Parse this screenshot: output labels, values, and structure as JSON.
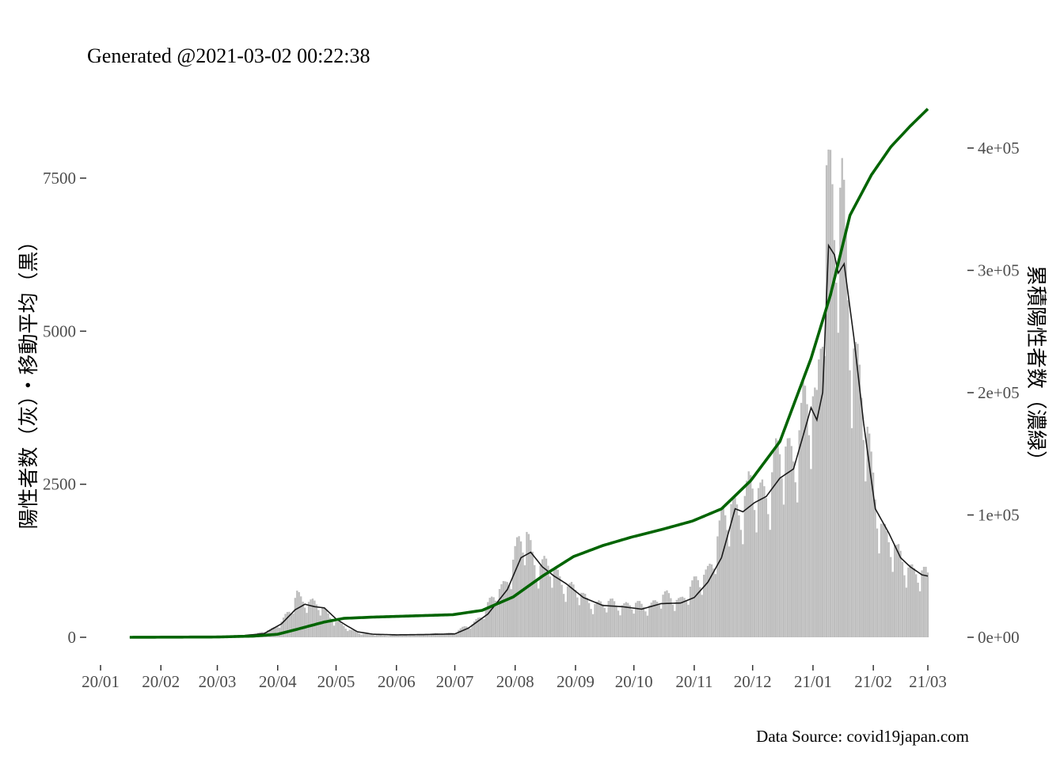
{
  "title": "Generated @2021-03-02 00:22:38",
  "caption": "Data Source: covid19japan.com",
  "chart_data": {
    "type": "bar",
    "description_free": true,
    "x_axis": {
      "type": "date",
      "range": [
        "2020-01-01",
        "2021-03-01"
      ],
      "tick_labels": [
        "20/01",
        "20/02",
        "20/03",
        "20/04",
        "20/05",
        "20/06",
        "20/07",
        "20/08",
        "20/09",
        "20/10",
        "20/11",
        "20/12",
        "21/01",
        "21/02",
        "21/03"
      ],
      "tick_dates": [
        "2020-01-01",
        "2020-02-01",
        "2020-03-01",
        "2020-04-01",
        "2020-05-01",
        "2020-06-01",
        "2020-07-01",
        "2020-08-01",
        "2020-09-01",
        "2020-10-01",
        "2020-11-01",
        "2020-12-01",
        "2021-01-01",
        "2021-02-01",
        "2021-03-01"
      ]
    },
    "y_left": {
      "label": "陽性者数（灰）・移動平均（黒）",
      "ticks": [
        0,
        2500,
        5000,
        7500
      ],
      "ylim": [
        -250,
        8500
      ]
    },
    "y_right": {
      "label": "累積陽性者数（濃緑）",
      "ticks": [
        0,
        100000,
        200000,
        300000,
        400000
      ],
      "tick_labels": [
        "0e+00",
        "1e+05",
        "2e+05",
        "3e+05",
        "4e+05"
      ],
      "ylim": [
        -16500,
        440000
      ]
    },
    "grid": false,
    "colors": {
      "daily_bars": "#bebebe",
      "moving_average": "#1a1a1a",
      "cumulative": "#006400"
    },
    "series": [
      {
        "kind": "bar",
        "color": "#bebebe",
        "knots_daily": [
          [
            "2020-01-16",
            0
          ],
          [
            "2020-02-15",
            5
          ],
          [
            "2020-03-01",
            12
          ],
          [
            "2020-03-10",
            30
          ],
          [
            "2020-03-20",
            40
          ],
          [
            "2020-03-28",
            120
          ],
          [
            "2020-04-03",
            250
          ],
          [
            "2020-04-08",
            420
          ],
          [
            "2020-04-11",
            680
          ],
          [
            "2020-04-18",
            560
          ],
          [
            "2020-04-25",
            420
          ],
          [
            "2020-05-01",
            260
          ],
          [
            "2020-05-08",
            110
          ],
          [
            "2020-05-15",
            60
          ],
          [
            "2020-05-25",
            25
          ],
          [
            "2020-06-05",
            40
          ],
          [
            "2020-06-20",
            55
          ],
          [
            "2020-07-01",
            80
          ],
          [
            "2020-07-10",
            210
          ],
          [
            "2020-07-20",
            560
          ],
          [
            "2020-07-27",
            900
          ],
          [
            "2020-08-01",
            1300
          ],
          [
            "2020-08-07",
            1600
          ],
          [
            "2020-08-12",
            1200
          ],
          [
            "2020-08-20",
            1050
          ],
          [
            "2020-08-27",
            870
          ],
          [
            "2020-09-05",
            620
          ],
          [
            "2020-09-15",
            520
          ],
          [
            "2020-09-25",
            540
          ],
          [
            "2020-10-05",
            480
          ],
          [
            "2020-10-15",
            620
          ],
          [
            "2020-10-25",
            620
          ],
          [
            "2020-11-01",
            800
          ],
          [
            "2020-11-08",
            1100
          ],
          [
            "2020-11-15",
            1700
          ],
          [
            "2020-11-20",
            2100
          ],
          [
            "2020-11-27",
            2200
          ],
          [
            "2020-12-05",
            2300
          ],
          [
            "2020-12-12",
            2700
          ],
          [
            "2020-12-20",
            2900
          ],
          [
            "2020-12-27",
            3600
          ],
          [
            "2021-01-03",
            3500
          ],
          [
            "2021-01-05",
            5000
          ],
          [
            "2021-01-08",
            7900
          ],
          [
            "2021-01-12",
            6200
          ],
          [
            "2021-01-16",
            6600
          ],
          [
            "2021-01-20",
            5400
          ],
          [
            "2021-01-25",
            4100
          ],
          [
            "2021-01-31",
            2500
          ],
          [
            "2021-02-06",
            1800
          ],
          [
            "2021-02-13",
            1250
          ],
          [
            "2021-02-20",
            1150
          ],
          [
            "2021-03-01",
            900
          ]
        ]
      },
      {
        "kind": "line",
        "color": "#1a1a1a",
        "knots_daily": [
          [
            "2020-01-16",
            0
          ],
          [
            "2020-03-01",
            10
          ],
          [
            "2020-03-15",
            30
          ],
          [
            "2020-03-25",
            60
          ],
          [
            "2020-04-03",
            220
          ],
          [
            "2020-04-10",
            450
          ],
          [
            "2020-04-15",
            540
          ],
          [
            "2020-04-20",
            500
          ],
          [
            "2020-04-25",
            480
          ],
          [
            "2020-05-01",
            300
          ],
          [
            "2020-05-07",
            180
          ],
          [
            "2020-05-12",
            90
          ],
          [
            "2020-05-20",
            50
          ],
          [
            "2020-06-01",
            40
          ],
          [
            "2020-06-15",
            45
          ],
          [
            "2020-07-01",
            55
          ],
          [
            "2020-07-08",
            150
          ],
          [
            "2020-07-18",
            380
          ],
          [
            "2020-07-28",
            780
          ],
          [
            "2020-08-04",
            1300
          ],
          [
            "2020-08-09",
            1390
          ],
          [
            "2020-08-15",
            1150
          ],
          [
            "2020-08-21",
            1000
          ],
          [
            "2020-08-27",
            880
          ],
          [
            "2020-09-05",
            650
          ],
          [
            "2020-09-15",
            520
          ],
          [
            "2020-09-25",
            500
          ],
          [
            "2020-10-05",
            460
          ],
          [
            "2020-10-15",
            550
          ],
          [
            "2020-10-25",
            560
          ],
          [
            "2020-11-01",
            650
          ],
          [
            "2020-11-08",
            900
          ],
          [
            "2020-11-15",
            1300
          ],
          [
            "2020-11-22",
            2100
          ],
          [
            "2020-11-26",
            2050
          ],
          [
            "2020-12-02",
            2200
          ],
          [
            "2020-12-08",
            2300
          ],
          [
            "2020-12-15",
            2600
          ],
          [
            "2020-12-22",
            2750
          ],
          [
            "2020-12-27",
            3300
          ],
          [
            "2020-12-31",
            3750
          ],
          [
            "2021-01-03",
            3550
          ],
          [
            "2021-01-06",
            4000
          ],
          [
            "2021-01-09",
            6400
          ],
          [
            "2021-01-12",
            6250
          ],
          [
            "2021-01-14",
            5950
          ],
          [
            "2021-01-17",
            6100
          ],
          [
            "2021-01-22",
            4900
          ],
          [
            "2021-01-27",
            3500
          ],
          [
            "2021-02-02",
            2100
          ],
          [
            "2021-02-09",
            1700
          ],
          [
            "2021-02-15",
            1300
          ],
          [
            "2021-02-20",
            1150
          ],
          [
            "2021-02-26",
            1020
          ],
          [
            "2021-03-01",
            1000
          ]
        ]
      },
      {
        "kind": "line",
        "axis": "right",
        "color": "#006400",
        "knots_cumulative": [
          [
            "2020-01-16",
            0
          ],
          [
            "2020-03-01",
            250
          ],
          [
            "2020-03-20",
            1000
          ],
          [
            "2020-04-01",
            2500
          ],
          [
            "2020-04-12",
            7000
          ],
          [
            "2020-04-25",
            12500
          ],
          [
            "2020-05-05",
            15500
          ],
          [
            "2020-05-20",
            16500
          ],
          [
            "2020-06-30",
            18500
          ],
          [
            "2020-07-15",
            22000
          ],
          [
            "2020-07-31",
            33000
          ],
          [
            "2020-08-15",
            50000
          ],
          [
            "2020-08-31",
            66000
          ],
          [
            "2020-09-15",
            75000
          ],
          [
            "2020-09-30",
            82000
          ],
          [
            "2020-10-15",
            88000
          ],
          [
            "2020-10-31",
            95000
          ],
          [
            "2020-11-15",
            105000
          ],
          [
            "2020-11-30",
            128000
          ],
          [
            "2020-12-15",
            160000
          ],
          [
            "2020-12-31",
            228000
          ],
          [
            "2021-01-10",
            280000
          ],
          [
            "2021-01-20",
            345000
          ],
          [
            "2021-01-31",
            378000
          ],
          [
            "2021-02-10",
            401000
          ],
          [
            "2021-02-20",
            418000
          ],
          [
            "2021-03-01",
            432000
          ]
        ]
      }
    ]
  }
}
